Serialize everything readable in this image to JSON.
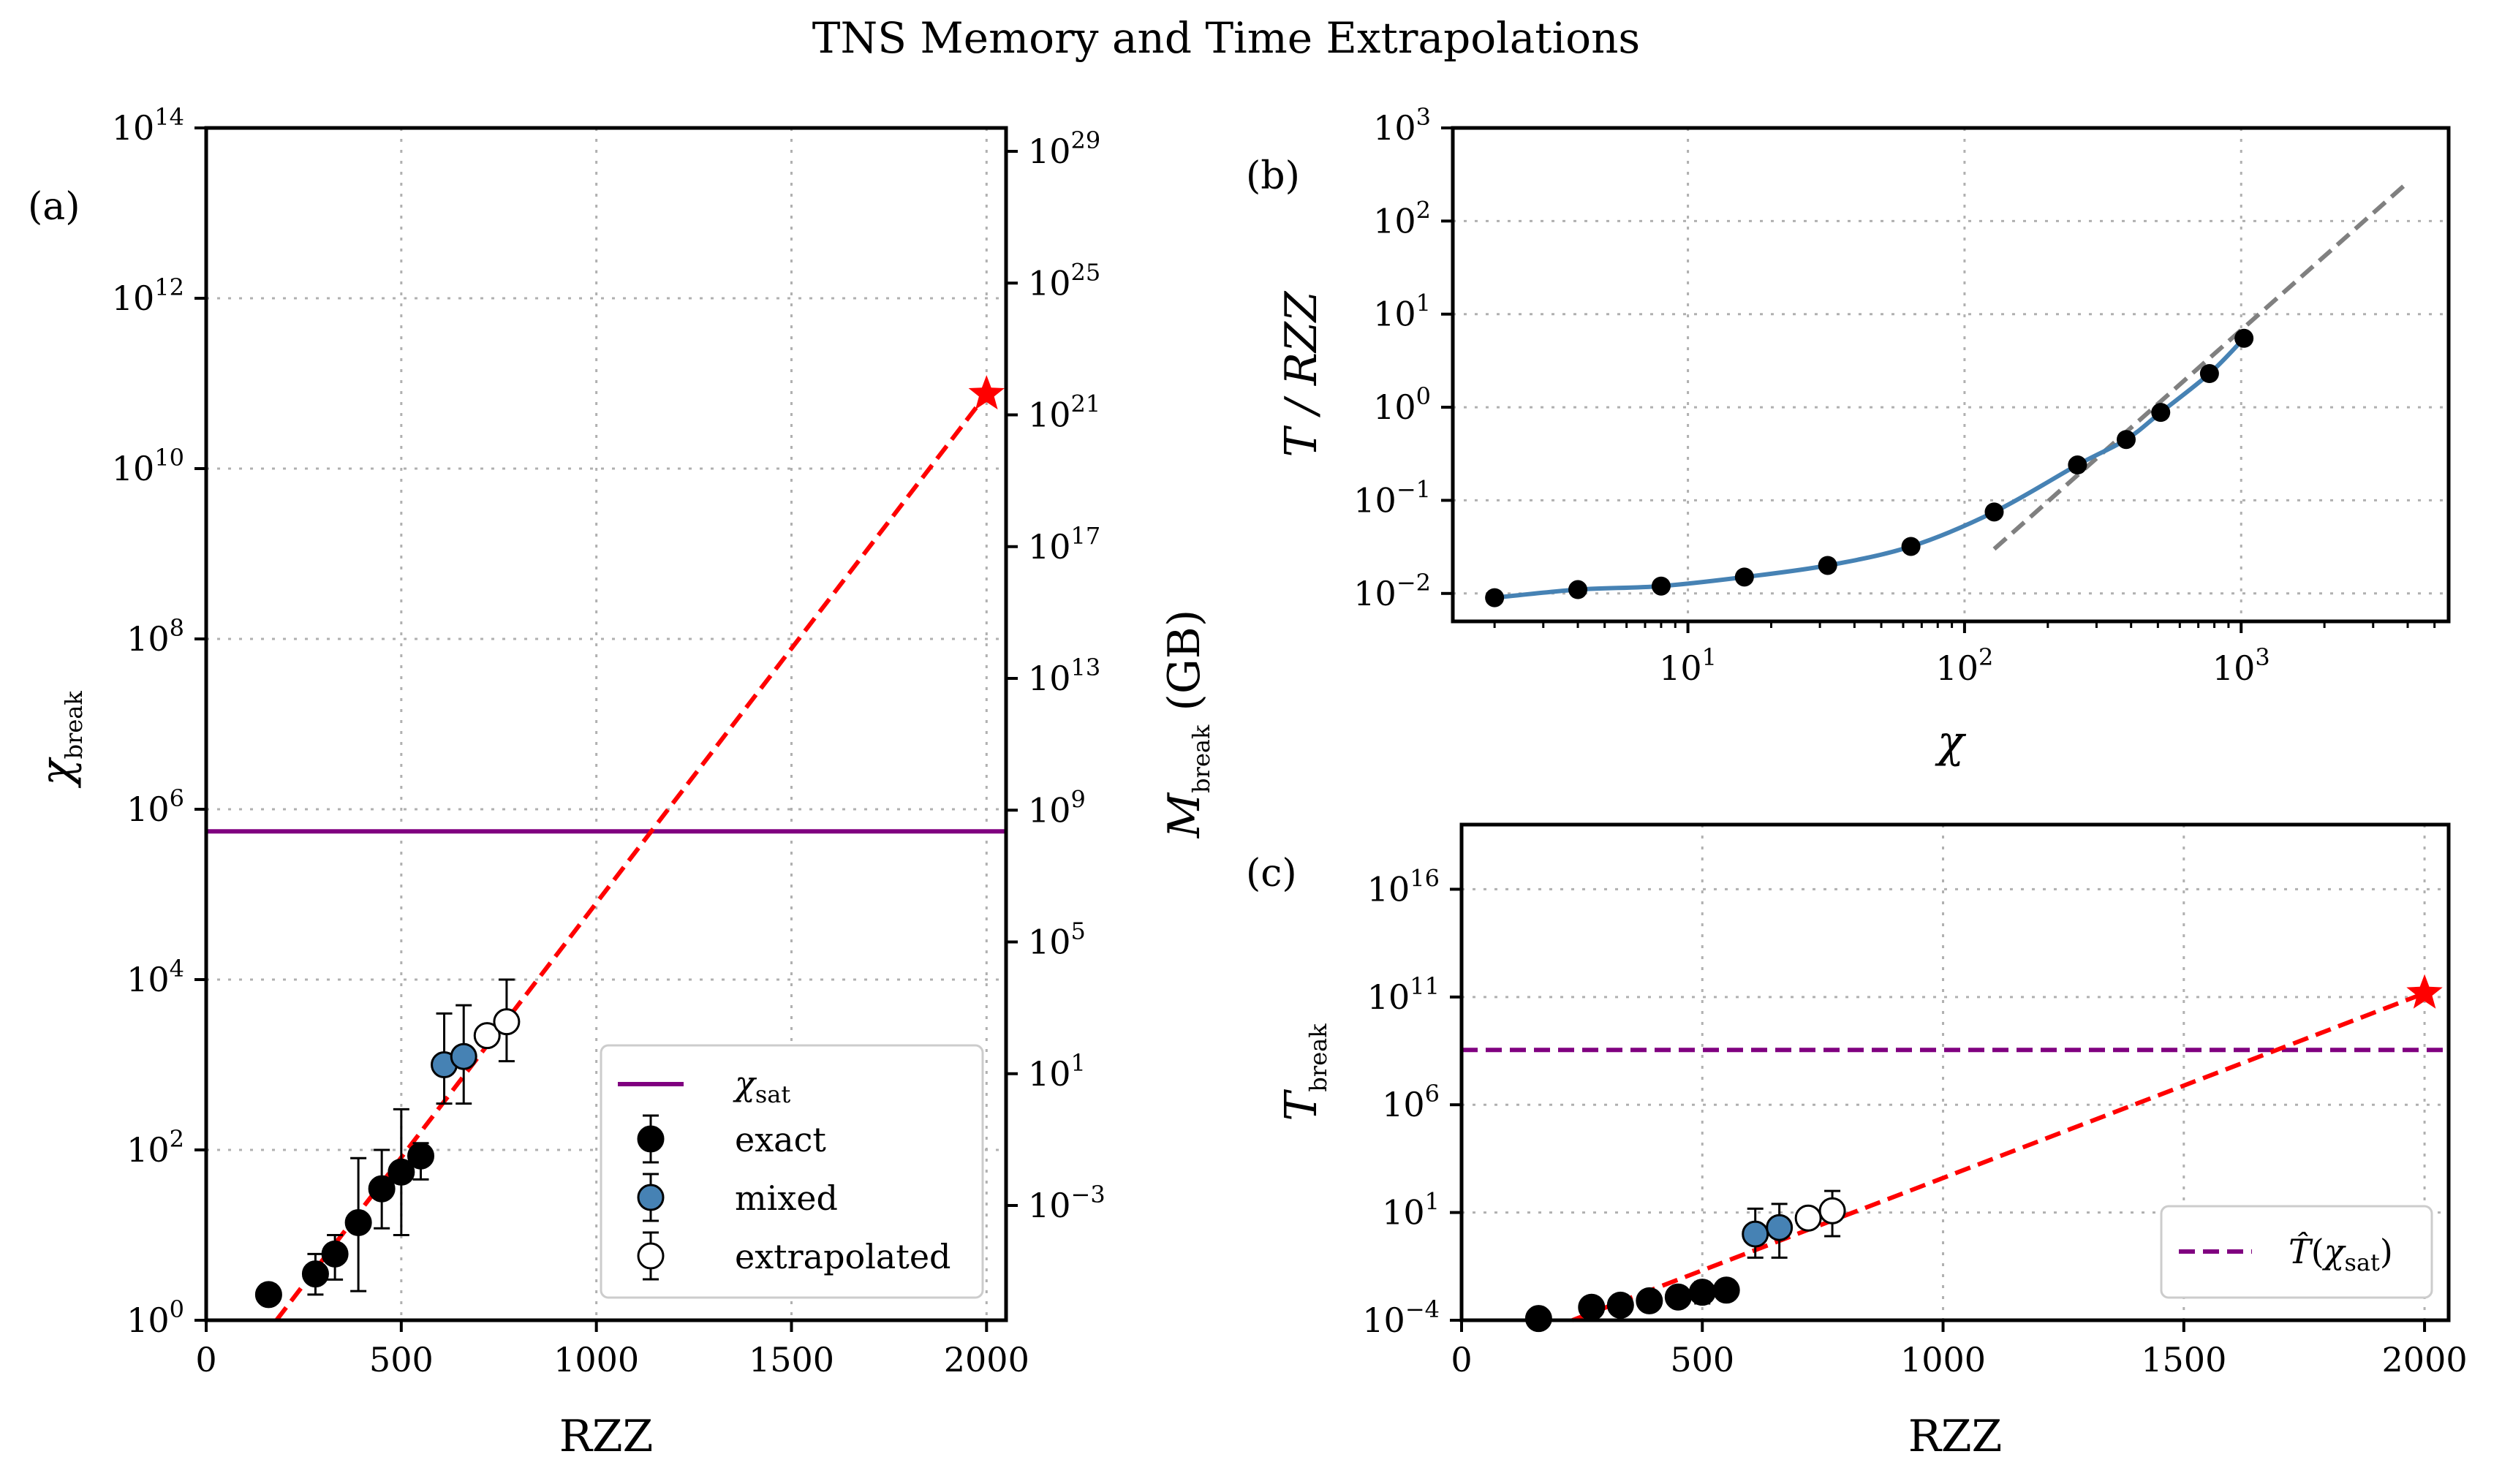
{
  "title": "TNS Memory and Time Extrapolations",
  "colors": {
    "exact": "#000000",
    "mixed": "#4682b4",
    "extrapolated": "#ffffff",
    "fit": "#ff0000",
    "sat": "#800080",
    "curve": "#4682b4",
    "asymptote": "#808080"
  },
  "chart_data": [
    {
      "panel": "(a)",
      "type": "scatter",
      "xlabel": "RZZ",
      "ylabel": "χbreak",
      "ylabel_right": "Mbreak (GB)",
      "xlim": [
        0,
        2050
      ],
      "yscale": "log",
      "ylim_exp": [
        0,
        14
      ],
      "xticks": [
        "0",
        "500",
        "1000",
        "1500",
        "2000"
      ],
      "yticks_exp": [
        "0",
        "2",
        "4",
        "6",
        "8",
        "10",
        "12",
        "14"
      ],
      "yticks_right_exp": [
        "−3",
        "1",
        "5",
        "9",
        "13",
        "17",
        "21",
        "25",
        "29"
      ],
      "series": [
        {
          "name": "exact",
          "points": [
            {
              "x": 160,
              "y": 2,
              "lo": 2,
              "hi": 2
            },
            {
              "x": 280,
              "y": 3.5,
              "lo": 2,
              "hi": 6
            },
            {
              "x": 330,
              "y": 6,
              "lo": 3,
              "hi": 10
            },
            {
              "x": 390,
              "y": 14,
              "lo": 2.2,
              "hi": 80
            },
            {
              "x": 450,
              "y": 35,
              "lo": 12,
              "hi": 100
            },
            {
              "x": 500,
              "y": 55,
              "lo": 10,
              "hi": 300
            },
            {
              "x": 550,
              "y": 85,
              "lo": 45,
              "hi": 120
            }
          ]
        },
        {
          "name": "mixed",
          "points": [
            {
              "x": 610,
              "y": 1000,
              "lo": 350,
              "hi": 4000
            },
            {
              "x": 660,
              "y": 1250,
              "lo": 350,
              "hi": 5000
            }
          ]
        },
        {
          "name": "extrapolated",
          "points": [
            {
              "x": 720,
              "y": 2200,
              "lo": 2200,
              "hi": 2200
            },
            {
              "x": 770,
              "y": 3200,
              "lo": 1100,
              "hi": 10000
            }
          ]
        }
      ],
      "fit_line": {
        "x": [
          180,
          2000
        ],
        "y": [
          1,
          75000000000.0
        ]
      },
      "star": {
        "x": 2000,
        "y": 75000000000.0
      },
      "chi_sat": 550000,
      "legend": {
        "placement": "lower-right",
        "entries": [
          "χsat",
          "exact",
          "mixed",
          "extrapolated"
        ]
      }
    },
    {
      "panel": "(b)",
      "type": "line",
      "xlabel": "χ",
      "ylabel": "T / RZZ",
      "xscale": "log",
      "yscale": "log",
      "xlim_exp": [
        0.15,
        3.75
      ],
      "ylim_exp": [
        -2.3,
        3
      ],
      "xticks_exp": [
        "1",
        "2",
        "3"
      ],
      "yticks_exp": [
        "−2",
        "−1",
        "0",
        "1",
        "2",
        "3"
      ],
      "x": [
        2,
        4,
        8,
        16,
        32,
        64,
        128,
        256,
        384,
        512,
        768,
        1024
      ],
      "y": [
        0.009,
        0.011,
        0.012,
        0.015,
        0.02,
        0.032,
        0.075,
        0.24,
        0.45,
        0.88,
        2.3,
        5.5
      ],
      "asymptote": {
        "x": [
          128,
          4000
        ],
        "y": [
          0.03,
          260
        ]
      }
    },
    {
      "panel": "(c)",
      "type": "scatter",
      "xlabel": "RZZ",
      "ylabel": "Tbreak",
      "xlim": [
        0,
        2050
      ],
      "yscale": "log",
      "ylim_exp": [
        -4,
        19
      ],
      "xticks": [
        "0",
        "500",
        "1000",
        "1500",
        "2000"
      ],
      "yticks_exp": [
        "−4",
        "1",
        "6",
        "11",
        "16"
      ],
      "series": [
        {
          "name": "exact",
          "points": [
            {
              "x": 160,
              "y": 0.00012,
              "lo": 0.00012,
              "hi": 0.00012
            },
            {
              "x": 270,
              "y": 0.0004,
              "lo": 0.0004,
              "hi": 0.0004
            },
            {
              "x": 330,
              "y": 0.0005,
              "lo": 0.0005,
              "hi": 0.0005
            },
            {
              "x": 390,
              "y": 0.0008,
              "lo": 0.0008,
              "hi": 0.0008
            },
            {
              "x": 450,
              "y": 0.0012,
              "lo": 0.0012,
              "hi": 0.0012
            },
            {
              "x": 500,
              "y": 0.002,
              "lo": 0.0006,
              "hi": 0.006
            },
            {
              "x": 550,
              "y": 0.0025,
              "lo": 0.0025,
              "hi": 0.0025
            }
          ]
        },
        {
          "name": "mixed",
          "points": [
            {
              "x": 610,
              "y": 1.0,
              "lo": 0.08,
              "hi": 15
            },
            {
              "x": 660,
              "y": 2.0,
              "lo": 0.08,
              "hi": 25
            }
          ]
        },
        {
          "name": "extrapolated",
          "points": [
            {
              "x": 720,
              "y": 5.5,
              "lo": 5.5,
              "hi": 5.5
            },
            {
              "x": 770,
              "y": 12,
              "lo": 0.8,
              "hi": 100
            }
          ]
        }
      ],
      "fit_line": {
        "x": [
          230,
          2000
        ],
        "y": [
          0.0001,
          150000000000.0
        ]
      },
      "star": {
        "x": 2000,
        "y": 150000000000.0
      },
      "t_sat": 350000000.0,
      "legend": {
        "placement": "lower-right",
        "entries": [
          "T̂(χsat)"
        ]
      }
    }
  ]
}
